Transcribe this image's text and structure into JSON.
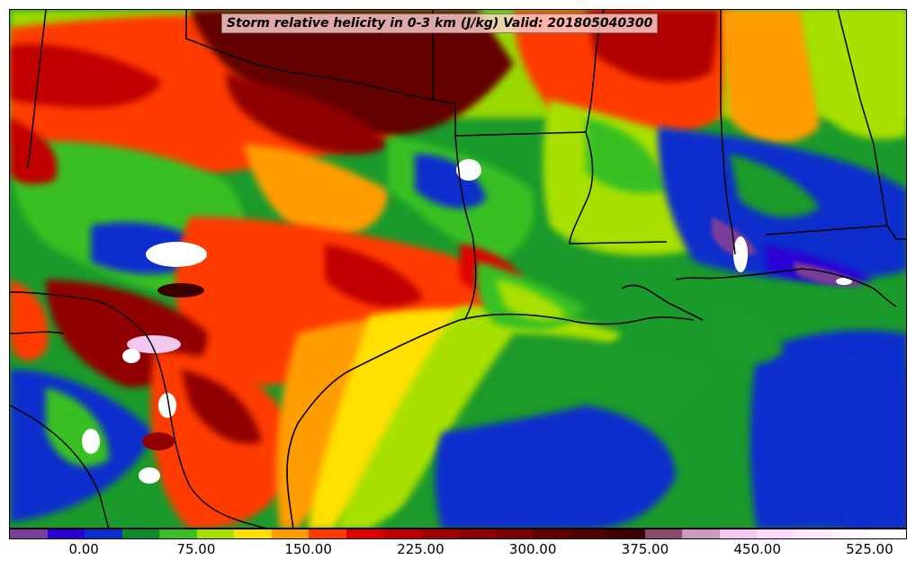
{
  "title": "Storm relative helicity in 0-3 km (J/kg) Valid: 201805040300",
  "colorbar": {
    "levels": [
      -50,
      -25,
      0,
      25,
      50,
      75,
      100,
      125,
      150,
      175,
      200,
      225,
      250,
      275,
      300,
      325,
      350,
      375,
      400,
      425,
      450,
      475,
      500,
      525,
      550
    ],
    "colors": [
      "#7a3d99",
      "#2a00d6",
      "#0a2ecc",
      "#0a8c2a",
      "#38c020",
      "#a8e000",
      "#ffe000",
      "#ff9c00",
      "#ff3b00",
      "#e00000",
      "#c00000",
      "#a80000",
      "#900000",
      "#780000",
      "#640000",
      "#500000",
      "#3c0000",
      "#8a4a6a",
      "#c89ac0",
      "#f2c8f0",
      "#ffd8ff",
      "#ffe8ff",
      "#fff4ff",
      "#ffffff"
    ],
    "tick_labels": [
      {
        "value": 0,
        "text": "0.00"
      },
      {
        "value": 75,
        "text": "75.00"
      },
      {
        "value": 150,
        "text": "150.00"
      },
      {
        "value": 225,
        "text": "225.00"
      },
      {
        "value": 300,
        "text": "300.00"
      },
      {
        "value": 375,
        "text": "375.00"
      },
      {
        "value": 450,
        "text": "450.00"
      },
      {
        "value": 525,
        "text": "525.00"
      }
    ]
  }
}
